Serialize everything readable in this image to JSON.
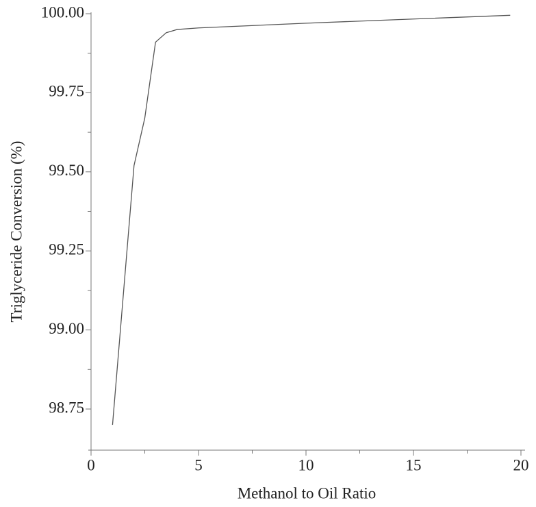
{
  "chart_data": {
    "type": "line",
    "xlabel": "Methanol to Oil Ratio",
    "ylabel": "Triglyceride Conversion (%)",
    "x": [
      1,
      2,
      2.5,
      3,
      3.5,
      4,
      5,
      10,
      19.5
    ],
    "series": [
      {
        "color": "#555555",
        "values": [
          98.7,
          99.52,
          99.67,
          99.91,
          99.94,
          99.95,
          99.955,
          99.97,
          99.995
        ]
      }
    ],
    "xlim": [
      0,
      20
    ],
    "ylim": [
      98.62,
      100.0
    ],
    "xticks": [
      0,
      5,
      10,
      15,
      20
    ],
    "xminorticks": [
      2.5,
      7.5,
      12.5,
      17.5
    ],
    "yticks": [
      {
        "value": 98.75,
        "label": "98.75"
      },
      {
        "value": 99,
        "label": "99.00"
      },
      {
        "value": 99.25,
        "label": "99.25"
      },
      {
        "value": 99.5,
        "label": "99.50"
      },
      {
        "value": 99.75,
        "label": "99.75"
      },
      {
        "value": 100,
        "label": "100.00"
      }
    ],
    "yminorticks": [
      98.875,
      99.125,
      99.375,
      99.625,
      99.875
    ]
  }
}
